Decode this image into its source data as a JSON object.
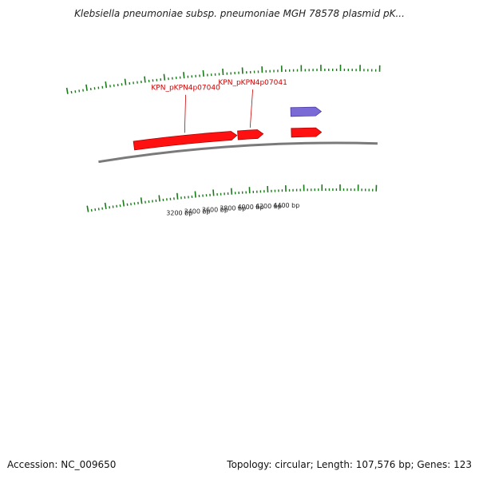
{
  "title": "Klebsiella pneumoniae subsp. pneumoniae MGH 78578 plasmid pK...",
  "footer": {
    "accession": "Accession: NC_009650",
    "summary": "Topology: circular; Length: 107,576 bp; Genes: 123"
  },
  "colors": {
    "forward_gene": "#ff1111",
    "reverse_gene": "#7a6ad6",
    "backbone": "#7a7a7a",
    "ticks": "#1a7a1a",
    "gene_label": "#cc0000"
  },
  "genes": [
    {
      "label": "KPN_pKPN4p07040",
      "start": 2800,
      "end": 3900,
      "strand": "forward"
    },
    {
      "label": "KPN_pKPN4p07041",
      "start": 3910,
      "end": 4180,
      "strand": "forward"
    },
    {
      "label": "",
      "start": 4480,
      "end": 4800,
      "strand": "forward"
    },
    {
      "label": "",
      "start": 4480,
      "end": 4800,
      "strand": "reverse"
    }
  ],
  "position_labels": [
    "3200 bp",
    "3400 bp",
    "3600 bp",
    "3800 bp",
    "4000 bp",
    "4200 bp",
    "4400 bp"
  ]
}
